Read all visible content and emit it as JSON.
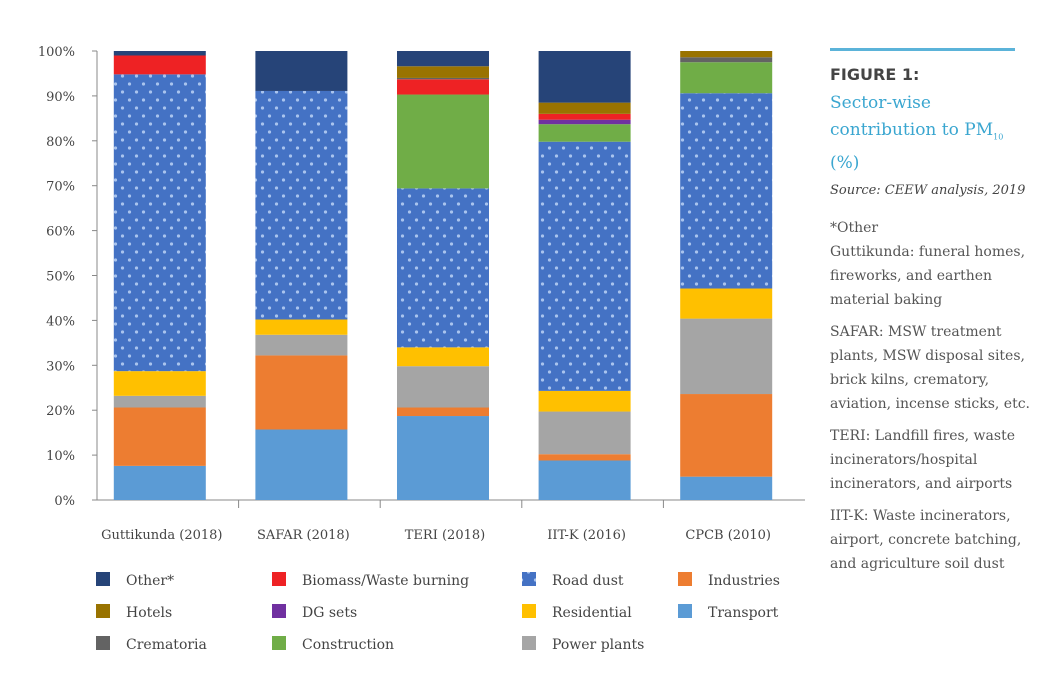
{
  "figure": {
    "label": "FIGURE 1:",
    "title": "Sector-wise contribution to PM",
    "title_sub": "10",
    "title_unit": "(%)",
    "source": "Source: CEEW analysis, 2019",
    "notes_header": "*Other",
    "notes": [
      "Guttikunda: funeral homes, fireworks, and earthen material baking",
      "SAFAR: MSW treatment plants, MSW disposal sites, brick kilns, crematory, aviation, incense sticks, etc.",
      "TERI: Landfill fires, waste incinerators/hospital incinerators, and airports",
      "IIT-K: Waste incinerators, airport, concrete batching, and agriculture soil dust"
    ]
  },
  "chart_data": {
    "type": "bar",
    "stacked": true,
    "categories": [
      "Guttikunda (2018)",
      "SAFAR (2018)",
      "TERI (2018)",
      "IIT-K (2016)",
      "CPCB (2010)"
    ],
    "ylim": [
      0,
      100
    ],
    "yticks": [
      "0%",
      "10%",
      "20%",
      "30%",
      "40%",
      "50%",
      "60%",
      "70%",
      "80%",
      "90%",
      "100%"
    ],
    "legend_position": "bottom",
    "series": [
      {
        "name": "Transport",
        "color": "#5b9bd5",
        "values": [
          7.6,
          15.7,
          18.7,
          8.8,
          5.2
        ]
      },
      {
        "name": "Industries",
        "color": "#ed7d31",
        "values": [
          13.0,
          16.5,
          1.9,
          1.4,
          18.4
        ]
      },
      {
        "name": "Power plants",
        "color": "#a5a5a5",
        "values": [
          2.6,
          4.6,
          9.2,
          9.5,
          16.8
        ]
      },
      {
        "name": "Residential",
        "color": "#ffc000",
        "values": [
          5.5,
          3.4,
          4.2,
          4.6,
          6.7
        ]
      },
      {
        "name": "Road dust",
        "color": "#4472c4",
        "pattern": "dots",
        "values": [
          66.1,
          50.9,
          35.4,
          55.5,
          43.5
        ]
      },
      {
        "name": "Construction",
        "color": "#70ad47",
        "values": [
          0,
          0,
          20.9,
          3.9,
          6.9
        ]
      },
      {
        "name": "DG sets",
        "color": "#7030a0",
        "values": [
          0,
          0,
          0,
          1.0,
          0
        ]
      },
      {
        "name": "Biomass/Waste burning",
        "color": "#ee2224",
        "values": [
          4.2,
          0,
          3.4,
          1.3,
          0
        ]
      },
      {
        "name": "Crematoria",
        "color": "#636363",
        "values": [
          0,
          0,
          0.3,
          0,
          1.1
        ]
      },
      {
        "name": "Hotels",
        "color": "#997300",
        "values": [
          0,
          0,
          2.6,
          2.5,
          1.4
        ]
      },
      {
        "name": "Other*",
        "color": "#264478",
        "values": [
          1.0,
          8.9,
          3.4,
          11.5,
          0
        ]
      }
    ],
    "legend_order": [
      "Other*",
      "Biomass/Waste burning",
      "Road dust",
      "Industries",
      "Hotels",
      "DG sets",
      "Residential",
      "Transport",
      "Crematoria",
      "Construction",
      "Power plants"
    ]
  }
}
